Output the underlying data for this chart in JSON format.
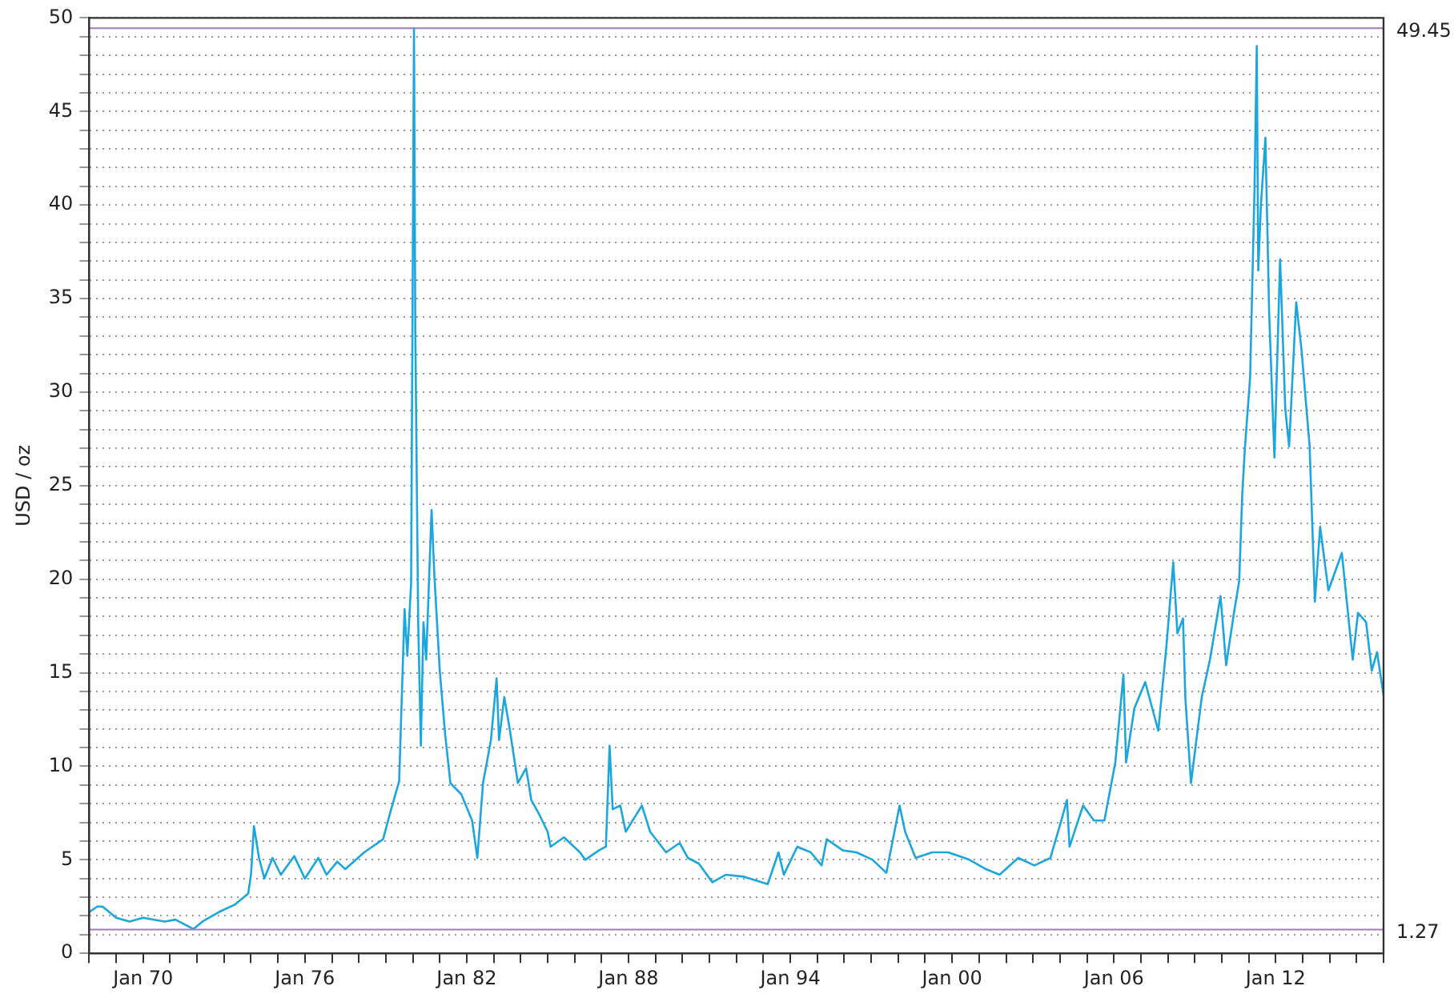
{
  "chart_data": {
    "type": "line",
    "ylabel": "USD / oz",
    "legend": false,
    "grid": "y",
    "marker": "none",
    "line_style": "solid",
    "xlim": [
      "1968-01",
      "2016-01"
    ],
    "xticks": [
      {
        "value": "1968-01",
        "label": null
      },
      {
        "value": "1969-01",
        "label": null
      },
      {
        "value": "1970-01",
        "label": "Jan 70"
      },
      {
        "value": "1971-01",
        "label": null
      },
      {
        "value": "1972-01",
        "label": null
      },
      {
        "value": "1973-01",
        "label": null
      },
      {
        "value": "1974-01",
        "label": null
      },
      {
        "value": "1975-01",
        "label": null
      },
      {
        "value": "1976-01",
        "label": "Jan 76"
      },
      {
        "value": "1977-01",
        "label": null
      },
      {
        "value": "1978-01",
        "label": null
      },
      {
        "value": "1979-01",
        "label": null
      },
      {
        "value": "1980-01",
        "label": null
      },
      {
        "value": "1981-01",
        "label": null
      },
      {
        "value": "1982-01",
        "label": "Jan 82"
      },
      {
        "value": "1983-01",
        "label": null
      },
      {
        "value": "1984-01",
        "label": null
      },
      {
        "value": "1985-01",
        "label": null
      },
      {
        "value": "1986-01",
        "label": null
      },
      {
        "value": "1987-01",
        "label": null
      },
      {
        "value": "1988-01",
        "label": "Jan 88"
      },
      {
        "value": "1989-01",
        "label": null
      },
      {
        "value": "1990-01",
        "label": null
      },
      {
        "value": "1991-01",
        "label": null
      },
      {
        "value": "1992-01",
        "label": null
      },
      {
        "value": "1993-01",
        "label": null
      },
      {
        "value": "1994-01",
        "label": "Jan 94"
      },
      {
        "value": "1995-01",
        "label": null
      },
      {
        "value": "1996-01",
        "label": null
      },
      {
        "value": "1997-01",
        "label": null
      },
      {
        "value": "1998-01",
        "label": null
      },
      {
        "value": "1999-01",
        "label": null
      },
      {
        "value": "2000-01",
        "label": "Jan 00"
      },
      {
        "value": "2001-01",
        "label": null
      },
      {
        "value": "2002-01",
        "label": null
      },
      {
        "value": "2003-01",
        "label": null
      },
      {
        "value": "2004-01",
        "label": null
      },
      {
        "value": "2005-01",
        "label": null
      },
      {
        "value": "2006-01",
        "label": "Jan 06"
      },
      {
        "value": "2007-01",
        "label": null
      },
      {
        "value": "2008-01",
        "label": null
      },
      {
        "value": "2009-01",
        "label": null
      },
      {
        "value": "2010-01",
        "label": null
      },
      {
        "value": "2011-01",
        "label": null
      },
      {
        "value": "2012-01",
        "label": "Jan 12"
      },
      {
        "value": "2013-01",
        "label": null
      },
      {
        "value": "2014-01",
        "label": null
      },
      {
        "value": "2015-01",
        "label": null
      },
      {
        "value": "2016-01",
        "label": null
      }
    ],
    "ylim": [
      0,
      50
    ],
    "yticks": [
      0,
      {
        "value": 1,
        "label": null
      },
      {
        "value": 2,
        "label": null
      },
      {
        "value": 3,
        "label": null
      },
      {
        "value": 4,
        "label": null
      },
      5,
      {
        "value": 6,
        "label": null
      },
      {
        "value": 7,
        "label": null
      },
      {
        "value": 8,
        "label": null
      },
      {
        "value": 9,
        "label": null
      },
      10,
      {
        "value": 11,
        "label": null
      },
      {
        "value": 12,
        "label": null
      },
      {
        "value": 13,
        "label": null
      },
      {
        "value": 14,
        "label": null
      },
      15,
      {
        "value": 16,
        "label": null
      },
      {
        "value": 17,
        "label": null
      },
      {
        "value": 18,
        "label": null
      },
      {
        "value": 19,
        "label": null
      },
      20,
      {
        "value": 21,
        "label": null
      },
      {
        "value": 22,
        "label": null
      },
      {
        "value": 23,
        "label": null
      },
      {
        "value": 24,
        "label": null
      },
      25,
      {
        "value": 26,
        "label": null
      },
      {
        "value": 27,
        "label": null
      },
      {
        "value": 28,
        "label": null
      },
      {
        "value": 29,
        "label": null
      },
      30,
      {
        "value": 31,
        "label": null
      },
      {
        "value": 32,
        "label": null
      },
      {
        "value": 33,
        "label": null
      },
      {
        "value": 34,
        "label": null
      },
      35,
      {
        "value": 36,
        "label": null
      },
      {
        "value": 37,
        "label": null
      },
      {
        "value": 38,
        "label": null
      },
      {
        "value": 39,
        "label": null
      },
      40,
      {
        "value": 41,
        "label": null
      },
      {
        "value": 42,
        "label": null
      },
      {
        "value": 43,
        "label": null
      },
      {
        "value": 44,
        "label": null
      },
      45,
      {
        "value": 46,
        "label": null
      },
      {
        "value": 47,
        "label": null
      },
      {
        "value": 48,
        "label": null
      },
      {
        "value": 49,
        "label": null
      },
      50
    ],
    "ref_lines": [
      {
        "axis": "y",
        "value": 49.45,
        "label": "49.45",
        "color": "#a07cb8"
      },
      {
        "axis": "y",
        "value": 1.27,
        "label": "1.27",
        "color": "#a07cb8"
      }
    ],
    "x": [
      "1968-01-01",
      "1968-04-20",
      "1968-07-01",
      "1969-01-01",
      "1969-07-01",
      "1970-01-01",
      "1970-10-20",
      "1971-03-15",
      "1971-11-15",
      "1972-03-15",
      "1972-10-20",
      "1973-05-25",
      "1973-11-25",
      "1974-01-01",
      "1974-02-10",
      "1974-04-20",
      "1974-07-01",
      "1974-10-20",
      "1975-02-10",
      "1975-08-10",
      "1976-01-01",
      "1976-07-01",
      "1976-10-20",
      "1977-03-15",
      "1977-07-01",
      "1978-03-15",
      "1978-11-25",
      "1979-03-15",
      "1979-07-01",
      "1979-08-28",
      "1979-09-12",
      "1979-10-20",
      "1979-12-10",
      "1980-01-18",
      "1980-02-05",
      "1980-03-15",
      "1980-04-20",
      "1980-05-25",
      "1980-07-01",
      "1980-09-12",
      "1980-10-20",
      "1981-01-01",
      "1981-03-15",
      "1981-05-25",
      "1981-10-20",
      "1982-03-15",
      "1982-05-25",
      "1982-08-10",
      "1982-11-25",
      "1983-02-10",
      "1983-03-15",
      "1983-05-25",
      "1983-08-10",
      "1983-11-25",
      "1984-03-15",
      "1984-05-25",
      "1984-09-12",
      "1985-01-01",
      "1985-02-10",
      "1985-08-10",
      "1986-03-15",
      "1986-05-25",
      "1986-11-25",
      "1987-03-01",
      "1987-04-20",
      "1987-06-01",
      "1987-09-12",
      "1987-11-25",
      "1988-07-01",
      "1988-10-20",
      "1989-05-25",
      "1989-11-25",
      "1990-03-15",
      "1990-08-10",
      "1991-02-10",
      "1991-08-10",
      "1992-04-05",
      "1993-03-01",
      "1993-07-25",
      "1993-10-05",
      "1994-04-05",
      "1994-10-05",
      "1995-03-01",
      "1995-05-10",
      "1995-12-15",
      "1996-06-15",
      "1997-01-20",
      "1997-07-25",
      "1998-01-20",
      "1998-04-05",
      "1998-08-25",
      "1999-04-05",
      "1999-11-10",
      "2000-08-25",
      "2001-04-05",
      "2001-10-05",
      "2002-06-15",
      "2003-01-20",
      "2003-08-25",
      "2004-01-20",
      "2004-04-05",
      "2004-05-10",
      "2004-11-10",
      "2005-04-05",
      "2005-08-25",
      "2006-01-20",
      "2006-05-10",
      "2006-06-15",
      "2006-10-05",
      "2007-03-01",
      "2007-08-25",
      "2007-12-15",
      "2008-03-15",
      "2008-05-10",
      "2008-07-25",
      "2008-08-25",
      "2008-11-10",
      "2009-04-05",
      "2009-07-25",
      "2009-12-15",
      "2010-03-01",
      "2010-06-15",
      "2010-08-25",
      "2010-10-05",
      "2010-11-10",
      "2011-01-20",
      "2011-03-20",
      "2011-04-20",
      "2011-05-10",
      "2011-06-15",
      "2011-08-15",
      "2011-10-05",
      "2011-12-15",
      "2012-03-01",
      "2012-05-10",
      "2012-07-01",
      "2012-10-05",
      "2012-12-15",
      "2013-04-05",
      "2013-06-15",
      "2013-08-25",
      "2013-12-15",
      "2014-06-15",
      "2014-11-10",
      "2015-01-20",
      "2015-05-10",
      "2015-07-25",
      "2015-10-05",
      "2016-01-01"
    ],
    "series": [
      {
        "color": "#1ba6de",
        "values": [
          2.2,
          2.5,
          2.5,
          1.9,
          1.7,
          1.9,
          1.7,
          1.8,
          1.3,
          1.7,
          2.2,
          2.6,
          3.2,
          4.2,
          6.8,
          5.1,
          4.0,
          5.1,
          4.2,
          5.2,
          4.0,
          5.1,
          4.2,
          4.9,
          4.5,
          5.4,
          6.1,
          7.7,
          9.2,
          16.5,
          18.4,
          15.9,
          19.8,
          49.45,
          33.1,
          17.7,
          11.1,
          17.7,
          15.7,
          23.7,
          20.2,
          15.1,
          11.7,
          9.1,
          8.5,
          7.1,
          5.1,
          9.1,
          11.4,
          14.7,
          11.4,
          13.7,
          11.9,
          9.1,
          9.9,
          8.2,
          7.4,
          6.5,
          5.7,
          6.2,
          5.4,
          5.0,
          5.5,
          5.7,
          11.1,
          7.7,
          7.9,
          6.5,
          7.9,
          6.5,
          5.4,
          5.9,
          5.1,
          4.8,
          3.8,
          4.2,
          4.1,
          3.7,
          5.4,
          4.2,
          5.7,
          5.4,
          4.7,
          6.1,
          5.5,
          5.4,
          5.0,
          4.3,
          7.9,
          6.5,
          5.1,
          5.4,
          5.4,
          5.0,
          4.5,
          4.2,
          5.1,
          4.7,
          5.1,
          7.1,
          8.2,
          5.7,
          7.9,
          7.1,
          7.1,
          10.2,
          14.9,
          10.2,
          13.1,
          14.5,
          11.9,
          16.5,
          20.9,
          17.1,
          17.9,
          13.7,
          9.1,
          13.7,
          15.7,
          19.1,
          15.4,
          18.2,
          19.9,
          24.5,
          27,
          30.8,
          40.8,
          48.5,
          36.5,
          40,
          43.6,
          34.2,
          26.5,
          37.1,
          29.1,
          27.1,
          34.8,
          32.3,
          27.1,
          18.8,
          22.8,
          19.4,
          21.4,
          15.7,
          18.2,
          17.7,
          15.1,
          16.1,
          13.8
        ]
      }
    ]
  }
}
